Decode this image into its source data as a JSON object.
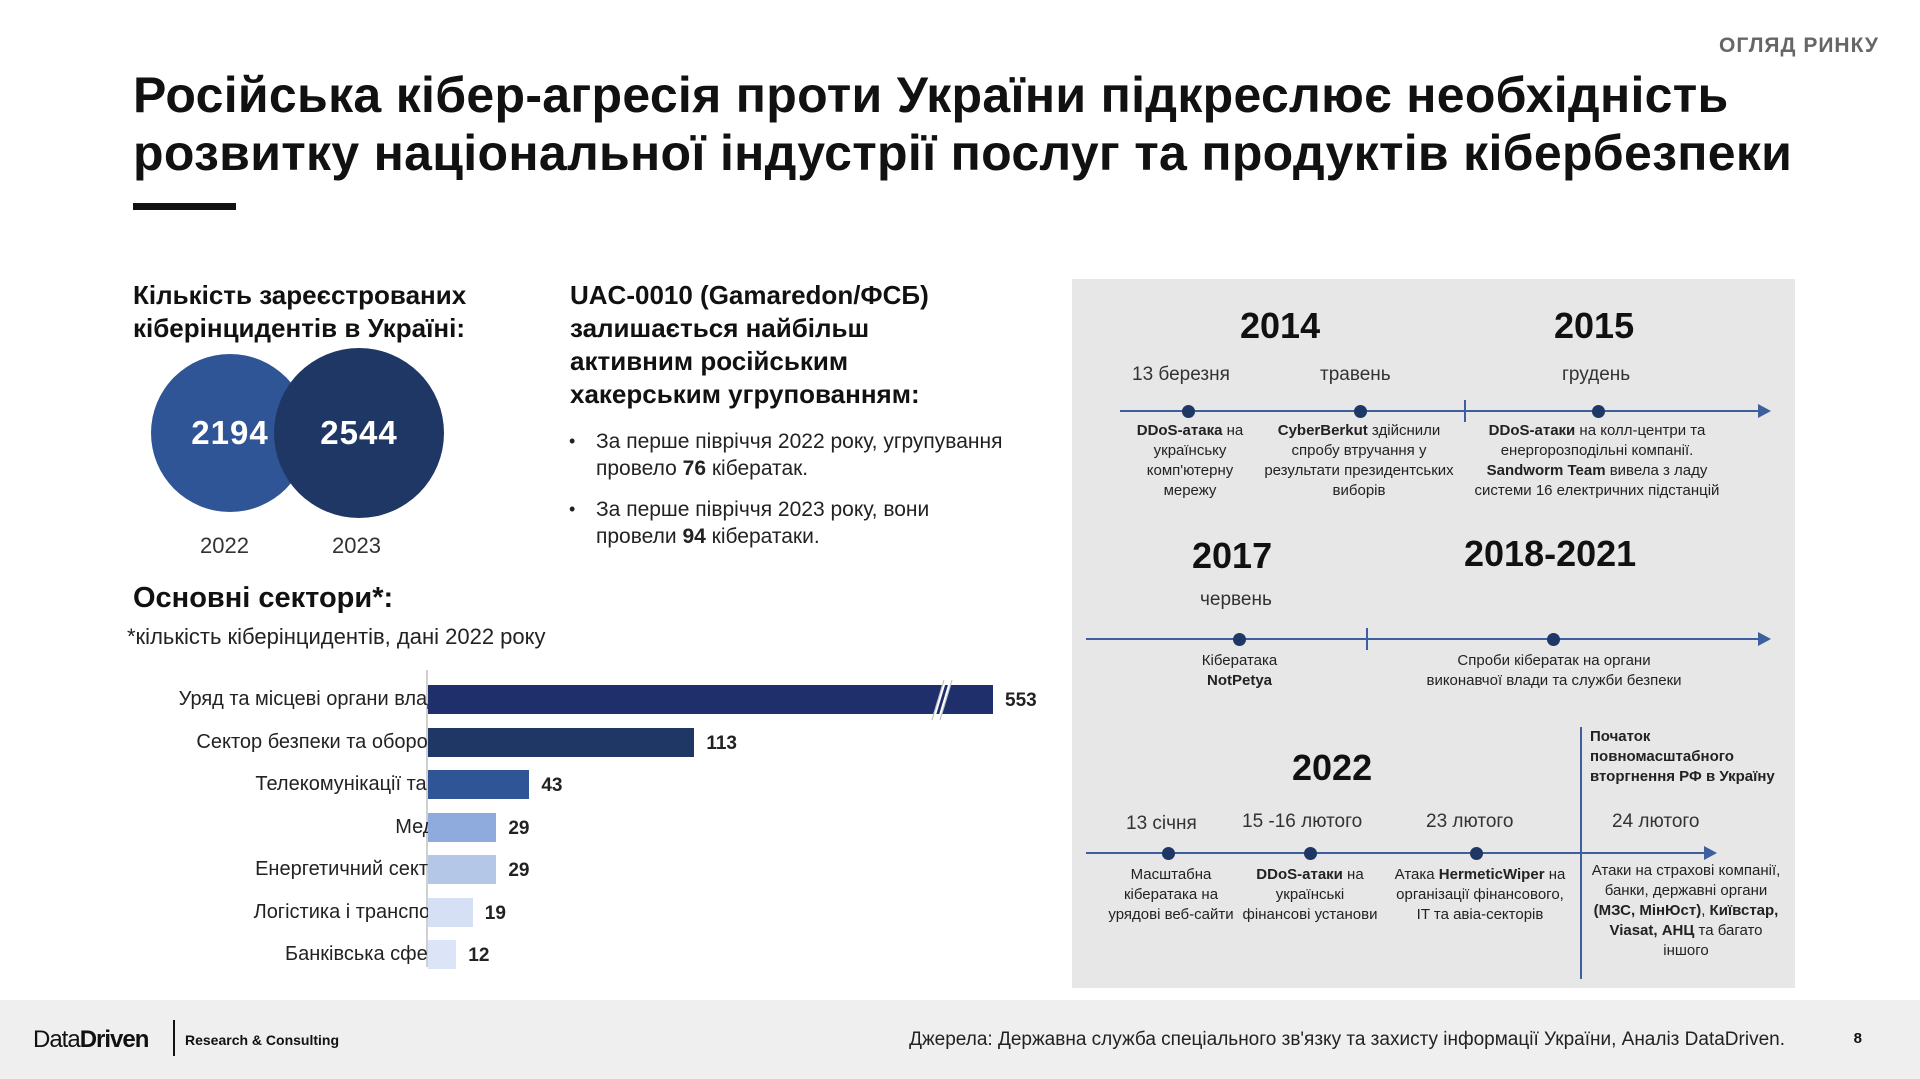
{
  "header": {
    "section_tag": "ОГЛЯД РИНКУ",
    "title_line1": "Російська кібер-агресія проти України підкреслює необхідність",
    "title_line2": "розвитку національної індустрії послуг та продуктів кібербезпеки"
  },
  "incidents": {
    "heading_line1": "Кількість зареєстрованих",
    "heading_line2": "кіберінцидентів в Україні:",
    "values": [
      {
        "year": "2022",
        "value": "2194"
      },
      {
        "year": "2023",
        "value": "2544"
      }
    ]
  },
  "uac": {
    "heading_line1": "UAC-0010 (Gamaredon/ФСБ)",
    "heading_line2": "залишається найбільш",
    "heading_line3": "активним російським",
    "heading_line4": "хакерським угрупованням:",
    "bullet1_before": "За перше півріччя 2022 року, угрупування провело ",
    "bullet1_bold": "76",
    "bullet1_after": " кібератак.",
    "bullet2_before": "За перше півріччя 2023 року, вони провели ",
    "bullet2_bold": "94",
    "bullet2_after": " кібератаки."
  },
  "sectors": {
    "heading": "Основні сектори*:",
    "note": "*кількість кіберінцидентів, дані 2022 року"
  },
  "chart_data": {
    "type": "bar",
    "orientation": "horizontal",
    "categories": [
      "Уряд та місцеві органи влади",
      "Сектор безпеки та оборони",
      "Телекомунікації та IT",
      "Медіа",
      "Енергетичний сектор",
      "Логістика і транспорт",
      "Банківська сфера"
    ],
    "values": [
      553,
      113,
      43,
      29,
      29,
      19,
      12
    ],
    "value_labels": [
      "553",
      "113",
      "43",
      "29",
      "29",
      "19",
      "12"
    ],
    "colors": [
      "#1f2f6b",
      "#1f3764",
      "#2f5597",
      "#8faadc",
      "#b4c7e7",
      "#d6e0f5",
      "#dbe5f7"
    ],
    "axis_break": true,
    "title": "",
    "xlabel": "",
    "ylabel": ""
  },
  "timeline": {
    "row1": {
      "year_a": "2014",
      "year_b": "2015",
      "events": [
        {
          "date": "13 березня",
          "bold": "DDoS-атака",
          "text": " на українську комп'ютерну мережу"
        },
        {
          "date": "травень",
          "bold": "CyberBerkut",
          "text": " здійснили спробу втручання у результати президентських виборів"
        },
        {
          "date": "грудень",
          "bold": "DDoS-атаки",
          "text": " на колл-центри та енергорозподільні компанії. ",
          "bold2": "Sandworm Team",
          "text2": " вивела з ладу системи 16 електричних підстанцій"
        }
      ]
    },
    "row2": {
      "year_a": "2017",
      "year_b": "2018-2021",
      "events": [
        {
          "date": "червень",
          "text": "Кібератака",
          "bold": "NotPetya"
        },
        {
          "date": "",
          "text": "Спроби кібератак на органи виконавчої влади та служби безпеки"
        }
      ]
    },
    "row3": {
      "year": "2022",
      "invasion_label": "Початок повномасштабного вторгнення РФ в Україну",
      "events": [
        {
          "date": "13 січня",
          "text": "Масштабна кібератака на урядові веб-сайти"
        },
        {
          "date": "15 -16 лютого",
          "bold": "DDoS-атаки",
          "text": " на українські фінансові установи"
        },
        {
          "date": "23 лютого",
          "pre": "Атака ",
          "bold": "HermeticWiper",
          "text": " на організації фінансового, IT та авіа-секторів"
        },
        {
          "date": "24 лютого",
          "text": "Атаки на страхові компанії, банки, державні органи ",
          "bold": "(МЗС, МінЮст)",
          "text2": ", ",
          "bold2": "Київстар, Viasat, АНЦ",
          "text3": " та багато іншого"
        }
      ]
    }
  },
  "footer": {
    "logo_plain": "Data",
    "logo_bold": "Driven",
    "logo_sub": "Research & Consulting",
    "sources": "Джерела:  Державна служба спеціального зв'язку та захисту інформації України, Аналіз DataDriven.",
    "page": "8"
  }
}
